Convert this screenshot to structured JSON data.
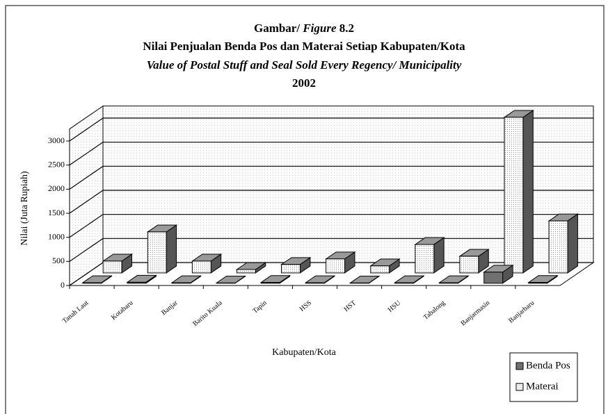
{
  "chart_data": {
    "type": "bar3d",
    "caption": [
      "Gambar/",
      "Figure",
      "8.2"
    ],
    "title": "Nilai Penjualan Benda Pos dan Materai Setiap Kabupaten/Kota",
    "subtitle": "Value of Postal Stuff and Seal Sold Every Regency/ Municipality",
    "year": "2002",
    "x_label": "Kabupaten/Kota",
    "y_label": "Nilai (Juta Rupiah)",
    "categories": [
      "Tanah Laut",
      "Kotabaru",
      "Banjar",
      "Barito Kuala",
      "Tapin",
      "HSS",
      "HST",
      "HSU",
      "Tabalong",
      "Banjarmasin",
      "Banjarbaru"
    ],
    "series": [
      {
        "name": "Benda Pos",
        "color": "#707070",
        "values": [
          10,
          20,
          10,
          5,
          15,
          10,
          5,
          10,
          10,
          230,
          15
        ]
      },
      {
        "name": "Materai",
        "color": "#ffffff",
        "values": [
          245,
          850,
          245,
          70,
          175,
          290,
          145,
          590,
          345,
          3230,
          1080
        ]
      }
    ],
    "ylim": [
      0,
      3250
    ],
    "yticks": [
      0,
      500,
      1000,
      1500,
      2000,
      2500,
      3000
    ],
    "grid": true,
    "legend": "bottom-right"
  }
}
